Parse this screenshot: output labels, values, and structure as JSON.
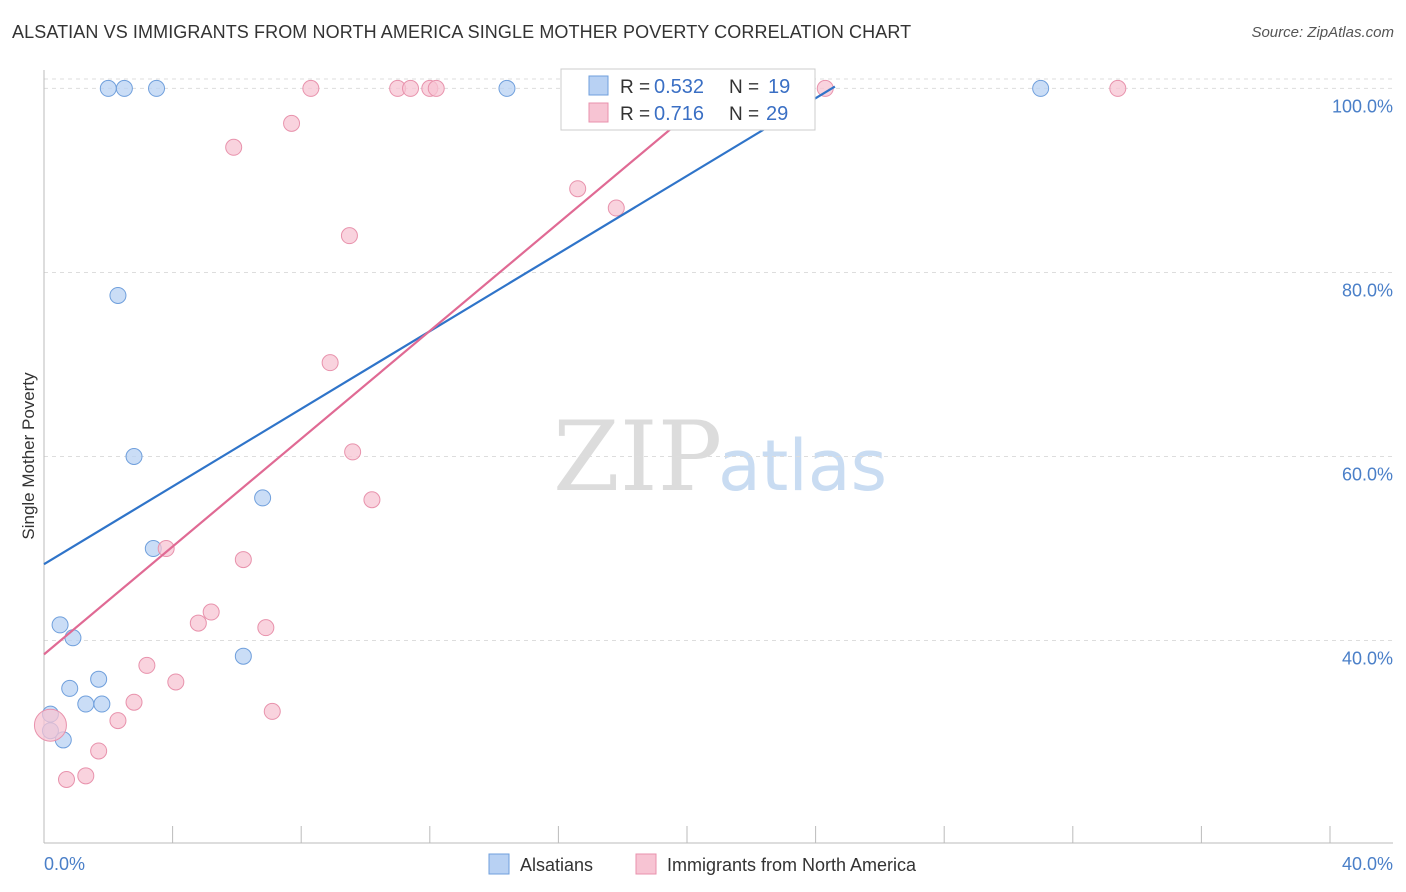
{
  "header": {
    "title": "ALSATIAN VS IMMIGRANTS FROM NORTH AMERICA SINGLE MOTHER POVERTY CORRELATION CHART",
    "source": "Source: ZipAtlas.com"
  },
  "watermark": {
    "zip": "ZIP",
    "atlas": "atlas"
  },
  "colors": {
    "blue_fill": "#b8d1f3",
    "blue_stroke": "#6f9fdc",
    "blue_line": "#2f74c9",
    "pink_fill": "#f7c4d3",
    "pink_stroke": "#e892ac",
    "pink_line": "#e06a94",
    "tick_text": "#4a7fc8",
    "grid": "#dddddd"
  },
  "chart_data": {
    "type": "scatter",
    "title": "ALSATIAN VS IMMIGRANTS FROM NORTH AMERICA SINGLE MOTHER POVERTY CORRELATION CHART",
    "xlabel": "",
    "ylabel": "Single Mother Poverty",
    "xlim": [
      0,
      40
    ],
    "ylim": [
      18,
      102
    ],
    "x_tick_labels": [
      {
        "value": 0,
        "label": "0.0%"
      },
      {
        "value": 40,
        "label": "40.0%"
      }
    ],
    "y_ticks": [
      {
        "value": 40,
        "label": "40.0%"
      },
      {
        "value": 60,
        "label": "60.0%"
      },
      {
        "value": 80,
        "label": "80.0%"
      },
      {
        "value": 100,
        "label": "100.0%"
      }
    ],
    "legend_stats": [
      {
        "r_label": "R =",
        "r": "0.532",
        "n_label": "N =",
        "n": "19"
      },
      {
        "r_label": "R =",
        "r": "0.716",
        "n_label": "N =",
        "n": "29"
      }
    ],
    "series": [
      {
        "name": "Alsatians",
        "color": "#b8d1f3",
        "trend": {
          "x0": 0,
          "y0": 48.3,
          "x1": 24.6,
          "y1": 100.2
        },
        "points": [
          {
            "x": 2.0,
            "y": 100
          },
          {
            "x": 2.5,
            "y": 100
          },
          {
            "x": 3.5,
            "y": 100
          },
          {
            "x": 14.4,
            "y": 100
          },
          {
            "x": 31.0,
            "y": 100
          },
          {
            "x": 2.3,
            "y": 77.5
          },
          {
            "x": 2.8,
            "y": 60.0
          },
          {
            "x": 6.8,
            "y": 55.5
          },
          {
            "x": 3.4,
            "y": 50.0
          },
          {
            "x": 0.5,
            "y": 41.7
          },
          {
            "x": 0.9,
            "y": 40.3
          },
          {
            "x": 6.2,
            "y": 38.3
          },
          {
            "x": 1.7,
            "y": 35.8
          },
          {
            "x": 0.8,
            "y": 34.8
          },
          {
            "x": 1.3,
            "y": 33.1
          },
          {
            "x": 1.8,
            "y": 33.1
          },
          {
            "x": 0.2,
            "y": 32.0
          },
          {
            "x": 0.2,
            "y": 30.2
          },
          {
            "x": 0.6,
            "y": 29.2
          }
        ]
      },
      {
        "name": "Immigrants from North America",
        "color": "#f7c4d3",
        "trend": {
          "x0": 0,
          "y0": 38.5,
          "x1": 21.0,
          "y1": 100.0
        },
        "points": [
          {
            "x": 8.3,
            "y": 100
          },
          {
            "x": 11.0,
            "y": 100
          },
          {
            "x": 11.4,
            "y": 100
          },
          {
            "x": 12.0,
            "y": 100
          },
          {
            "x": 12.2,
            "y": 100
          },
          {
            "x": 24.3,
            "y": 100
          },
          {
            "x": 33.4,
            "y": 100
          },
          {
            "x": 7.7,
            "y": 96.2
          },
          {
            "x": 5.9,
            "y": 93.6
          },
          {
            "x": 16.6,
            "y": 89.1
          },
          {
            "x": 17.8,
            "y": 87.0
          },
          {
            "x": 9.5,
            "y": 84.0
          },
          {
            "x": 8.9,
            "y": 70.2
          },
          {
            "x": 9.6,
            "y": 60.5
          },
          {
            "x": 10.2,
            "y": 55.3
          },
          {
            "x": 3.8,
            "y": 50.0
          },
          {
            "x": 6.2,
            "y": 48.8
          },
          {
            "x": 5.2,
            "y": 43.1
          },
          {
            "x": 4.8,
            "y": 41.9
          },
          {
            "x": 6.9,
            "y": 41.4
          },
          {
            "x": 3.2,
            "y": 37.3
          },
          {
            "x": 4.1,
            "y": 35.5
          },
          {
            "x": 2.8,
            "y": 33.3
          },
          {
            "x": 7.1,
            "y": 32.3
          },
          {
            "x": 2.3,
            "y": 31.3
          },
          {
            "x": 0.2,
            "y": 30.8,
            "big": true
          },
          {
            "x": 1.7,
            "y": 28.0
          },
          {
            "x": 1.3,
            "y": 25.3
          },
          {
            "x": 0.7,
            "y": 24.9
          }
        ]
      }
    ]
  }
}
